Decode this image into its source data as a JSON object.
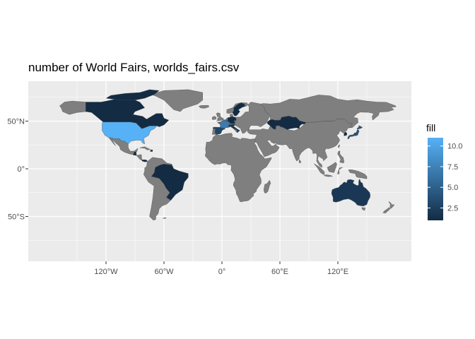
{
  "title": "number of World Fairs, worlds_fairs.csv",
  "chart_data": {
    "type": "choropleth map",
    "title": "number of World Fairs, worlds_fairs.csv",
    "x_ticks": [
      "120°W",
      "60°W",
      "0°",
      "60°E",
      "120°E"
    ],
    "y_ticks": [
      "50°N",
      "0°",
      "50°S"
    ],
    "legend": {
      "title": "fill",
      "placement": "right",
      "breaks": [
        "10.0",
        "7.5",
        "5.0",
        "2.5"
      ],
      "low_color": "#132B43",
      "high_color": "#56B1F7"
    },
    "values_by_country": [
      {
        "country": "United States",
        "value": 11
      },
      {
        "country": "Canada",
        "value": 1
      },
      {
        "country": "France",
        "value": 7
      },
      {
        "country": "Belgium",
        "value": 6
      },
      {
        "country": "Spain",
        "value": 3
      },
      {
        "country": "Italy",
        "value": 2
      },
      {
        "country": "Germany",
        "value": 1
      },
      {
        "country": "Sweden",
        "value": 1
      },
      {
        "country": "Kazakhstan",
        "value": 1
      },
      {
        "country": "Japan",
        "value": 4
      },
      {
        "country": "South Korea",
        "value": 1
      },
      {
        "country": "Australia",
        "value": 2
      },
      {
        "country": "Panama",
        "value": 1
      },
      {
        "country": "Guatemala",
        "value": 1
      },
      {
        "country": "Haiti",
        "value": 1
      },
      {
        "country": "Brazil",
        "value": 1
      }
    ],
    "colors": {
      "panel": "#EBEBEB",
      "grid": "#FFFFFF",
      "no_data": "#7F7F7F",
      "border": "#4D4D4D"
    }
  }
}
